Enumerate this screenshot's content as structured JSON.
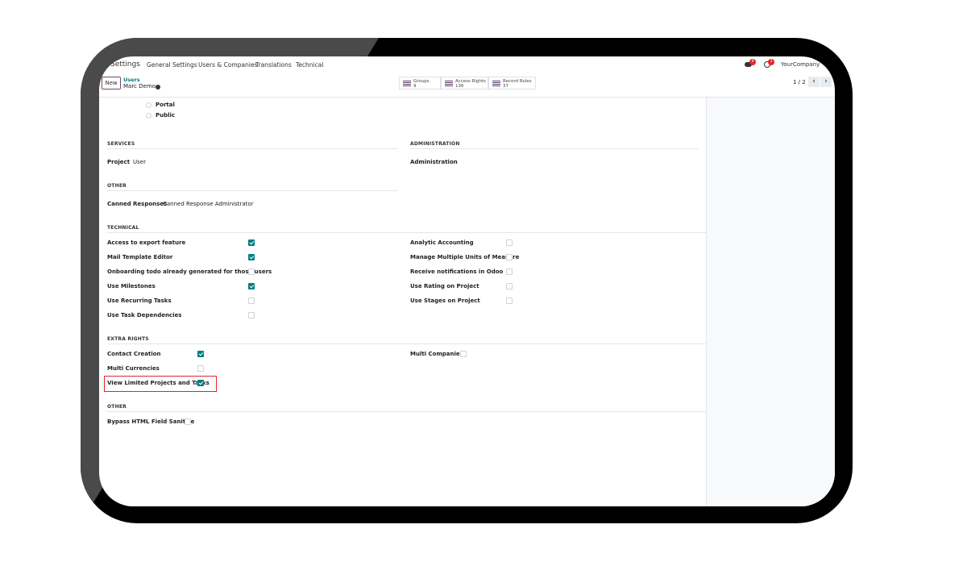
{
  "nav": {
    "app": "Settings",
    "items": [
      "General Settings",
      "Users & Companies",
      "Translations",
      "Technical"
    ],
    "company": "YourCompany",
    "messages_badge": "8",
    "activities_badge": "3"
  },
  "control": {
    "new_label": "New",
    "breadcrumb_parent": "Users",
    "breadcrumb_current": "Marc Demo",
    "pager": "1 / 2"
  },
  "stats": [
    {
      "label": "Groups",
      "value": "9",
      "icon": "users-icon"
    },
    {
      "label": "Access Rights",
      "value": "136",
      "icon": "list-icon"
    },
    {
      "label": "Record Rules",
      "value": "37",
      "icon": "list-bullets-icon"
    }
  ],
  "user_type_options": [
    {
      "label": "Portal",
      "selected": false
    },
    {
      "label": "Public",
      "selected": false
    }
  ],
  "sections": {
    "services": {
      "title": "SERVICES",
      "fields": [
        {
          "label": "Project",
          "value": "User"
        }
      ]
    },
    "administration": {
      "title": "ADMINISTRATION",
      "fields": [
        {
          "label": "Administration",
          "value": ""
        }
      ]
    },
    "other1": {
      "title": "OTHER",
      "fields": [
        {
          "label": "Canned Responses",
          "value": "Canned Response Administrator"
        }
      ]
    },
    "technical": {
      "title": "TECHNICAL",
      "left": [
        {
          "label": "Access to export feature",
          "checked": true
        },
        {
          "label": "Mail Template Editor",
          "checked": true
        },
        {
          "label": "Onboarding todo already generated for those users",
          "checked": false
        },
        {
          "label": "Use Milestones",
          "checked": true
        },
        {
          "label": "Use Recurring Tasks",
          "checked": false
        },
        {
          "label": "Use Task Dependencies",
          "checked": false
        }
      ],
      "right": [
        {
          "label": "Analytic Accounting",
          "checked": false
        },
        {
          "label": "Manage Multiple Units of Measure",
          "checked": false
        },
        {
          "label": "Receive notifications in Odoo",
          "checked": false
        },
        {
          "label": "Use Rating on Project",
          "checked": false
        },
        {
          "label": "Use Stages on Project",
          "checked": false
        }
      ]
    },
    "extra_rights": {
      "title": "EXTRA RIGHTS",
      "left": [
        {
          "label": "Contact Creation",
          "checked": true
        },
        {
          "label": "Multi Currencies",
          "checked": false
        },
        {
          "label": "View Limited Projects and Tasks",
          "checked": true,
          "highlighted": true
        }
      ],
      "right": [
        {
          "label": "Multi Companies",
          "checked": false
        }
      ]
    },
    "other2": {
      "title": "OTHER",
      "left": [
        {
          "label": "Bypass HTML Field Sanitize",
          "checked": false
        }
      ]
    }
  },
  "colors": {
    "accent": "#017e84",
    "brand": "#714b67",
    "highlight": "#e0262f"
  }
}
